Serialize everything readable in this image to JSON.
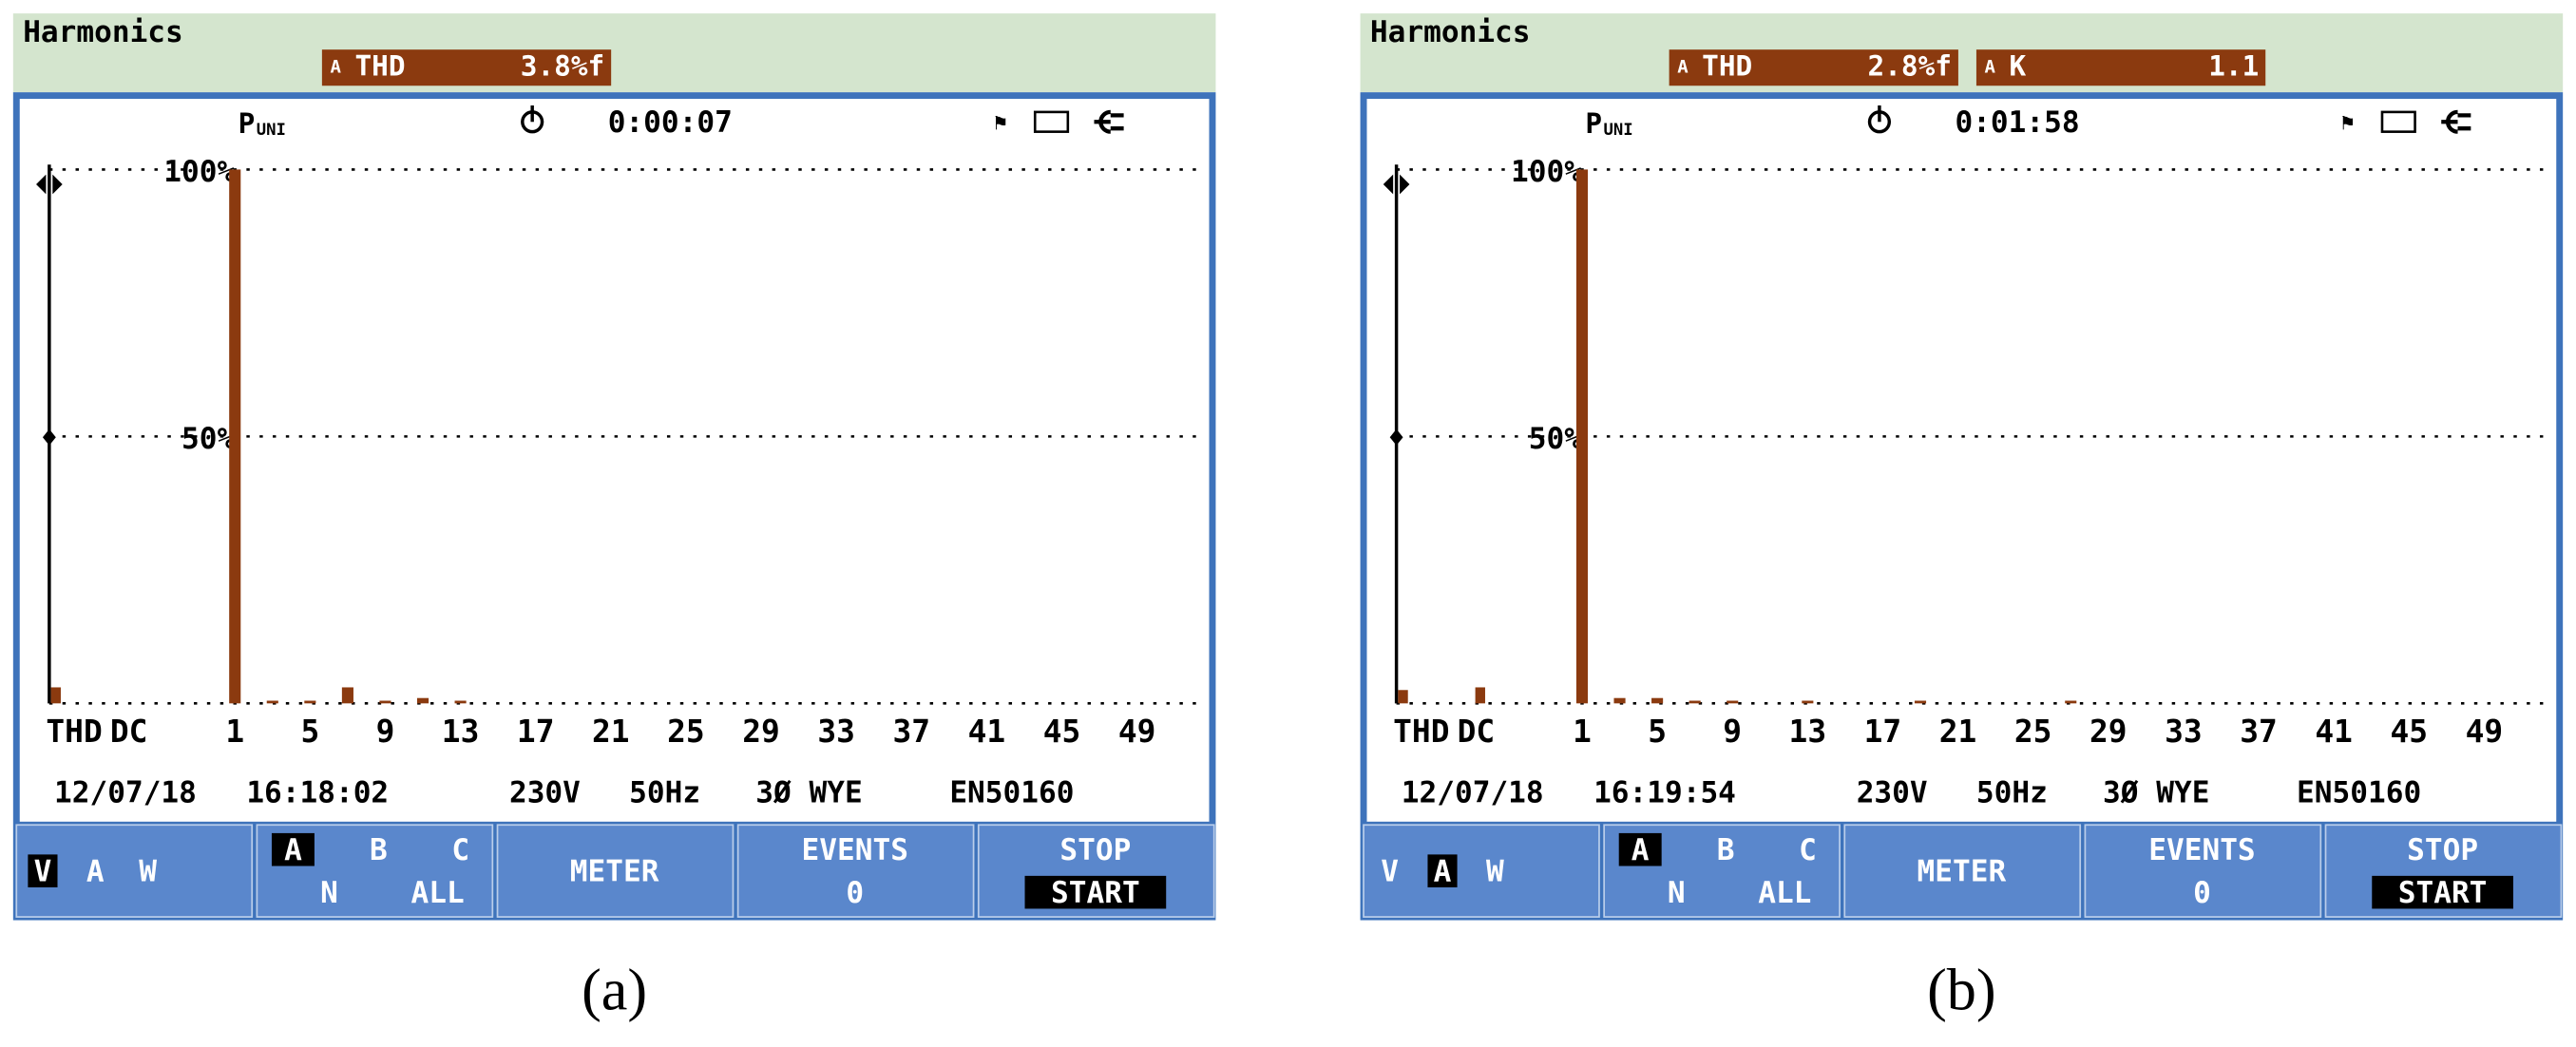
{
  "chart_data": [
    {
      "type": "bar",
      "title": "Harmonics",
      "readouts": [
        {
          "phase": "A",
          "label": "THD",
          "value": "3.8%f"
        }
      ],
      "mode": "P",
      "mode_sub": "UNI",
      "timer": "0:00:07",
      "categories": [
        "THD",
        "DC",
        "1",
        null,
        null,
        null,
        "5",
        null,
        null,
        null,
        "9",
        null,
        null,
        null,
        "13",
        null,
        null,
        null,
        "17",
        null,
        null,
        null,
        "21",
        null,
        null,
        null,
        "25",
        null,
        null,
        null,
        "29",
        null,
        null,
        null,
        "33",
        null,
        null,
        null,
        "37",
        null,
        null,
        null,
        "41",
        null,
        null,
        null,
        "45",
        null,
        null,
        null,
        "49"
      ],
      "values": [
        3,
        0,
        100,
        0,
        0.5,
        0,
        0.5,
        0,
        3,
        0,
        0.5,
        0,
        1,
        0,
        0.5,
        0,
        0,
        0,
        0,
        0,
        0,
        0,
        0,
        0,
        0,
        0,
        0,
        0,
        0,
        0,
        0,
        0,
        0,
        0,
        0,
        0,
        0,
        0,
        0,
        0,
        0,
        0,
        0,
        0,
        0,
        0,
        0,
        0,
        0,
        0,
        0
      ],
      "color": "#8b3a0f",
      "ylim": [
        0,
        100
      ],
      "yticks": [
        {
          "value": 50,
          "label": "50%"
        },
        {
          "value": 100,
          "label": "100%"
        }
      ],
      "grid": true,
      "status": [
        "12/07/18",
        "16:18:02",
        "230V",
        "50Hz",
        "3Ø WYE",
        "EN50160"
      ],
      "quantities": [
        "V",
        "A",
        "W"
      ],
      "selected_quantity": 0,
      "phases": [
        "A",
        "B",
        "C",
        "N",
        "ALL"
      ],
      "selected_phase": 0,
      "meter": "METER",
      "events": "EVENTS",
      "events_count": 0,
      "stop": "STOP",
      "start": "START",
      "caption": "(a)"
    },
    {
      "type": "bar",
      "title": "Harmonics",
      "readouts": [
        {
          "phase": "A",
          "label": "THD",
          "value": "2.8%f"
        },
        {
          "phase": "A",
          "label": "K",
          "value": "1.1"
        }
      ],
      "mode": "P",
      "mode_sub": "UNI",
      "timer": "0:01:58",
      "categories": [
        "THD",
        "DC",
        "1",
        null,
        null,
        null,
        "5",
        null,
        null,
        null,
        "9",
        null,
        null,
        null,
        "13",
        null,
        null,
        null,
        "17",
        null,
        null,
        null,
        "21",
        null,
        null,
        null,
        "25",
        null,
        null,
        null,
        "29",
        null,
        null,
        null,
        "33",
        null,
        null,
        null,
        "37",
        null,
        null,
        null,
        "41",
        null,
        null,
        null,
        "45",
        null,
        null,
        null,
        "49"
      ],
      "values": [
        2.5,
        3,
        100,
        0,
        1,
        0,
        1,
        0,
        0.5,
        0,
        0.5,
        0,
        0,
        0,
        0.5,
        0,
        0,
        0,
        0,
        0,
        0.5,
        0,
        0,
        0,
        0,
        0,
        0,
        0,
        0.5,
        0,
        0,
        0,
        0,
        0,
        0,
        0,
        0,
        0,
        0,
        0,
        0,
        0,
        0,
        0,
        0,
        0,
        0,
        0,
        0,
        0,
        0
      ],
      "color": "#8b3a0f",
      "ylim": [
        0,
        100
      ],
      "yticks": [
        {
          "value": 50,
          "label": "50%"
        },
        {
          "value": 100,
          "label": "100%"
        }
      ],
      "grid": true,
      "status": [
        "12/07/18",
        "16:19:54",
        "230V",
        "50Hz",
        "3Ø WYE",
        "EN50160"
      ],
      "quantities": [
        "V",
        "A",
        "W"
      ],
      "selected_quantity": 1,
      "phases": [
        "A",
        "B",
        "C",
        "N",
        "ALL"
      ],
      "selected_phase": 0,
      "meter": "METER",
      "events": "EVENTS",
      "events_count": 0,
      "stop": "STOP",
      "start": "START",
      "caption": "(b)"
    }
  ]
}
